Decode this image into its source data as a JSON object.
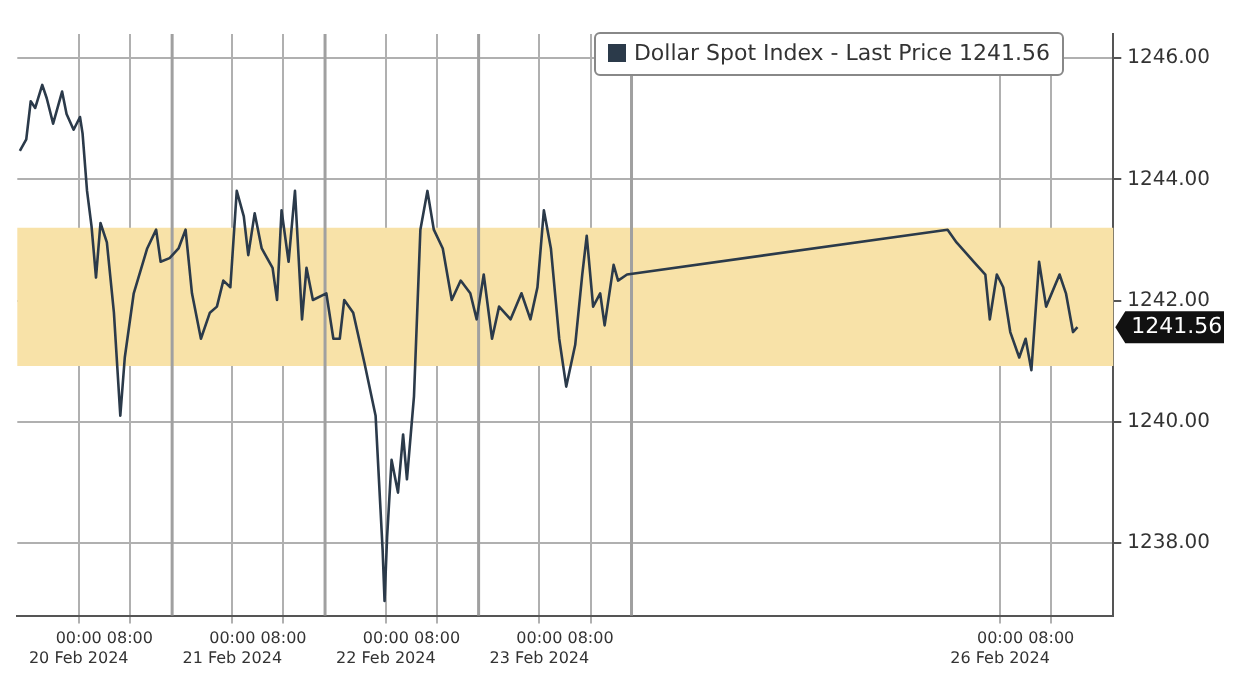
{
  "chart_data": {
    "type": "line",
    "x": [
      "2024-02-19T14:48",
      "2024-02-19T15:48",
      "2024-02-19T16:30",
      "2024-02-19T17:12",
      "2024-02-19T18:18",
      "2024-02-19T19:00",
      "2024-02-19T20:00",
      "2024-02-19T21:24",
      "2024-02-19T22:06",
      "2024-02-19T23:12",
      "2024-02-20T00:12",
      "2024-02-20T00:36",
      "2024-02-20T01:18",
      "2024-02-20T02:00",
      "2024-02-20T02:42",
      "2024-02-20T03:24",
      "2024-02-20T04:24",
      "2024-02-20T05:30",
      "2024-02-20T06:30",
      "2024-02-20T07:12",
      "2024-02-20T08:36",
      "2024-02-20T10:42",
      "2024-02-20T12:06",
      "2024-02-20T12:48",
      "2024-02-20T14:12",
      "2024-02-20T15:36",
      "2024-02-20T16:42",
      "2024-02-20T17:42",
      "2024-02-20T19:06",
      "2024-02-20T20:30",
      "2024-02-20T21:36",
      "2024-02-20T22:36",
      "2024-02-20T23:42",
      "2024-02-21T00:42",
      "2024-02-21T01:48",
      "2024-02-21T02:30",
      "2024-02-21T03:30",
      "2024-02-21T04:36",
      "2024-02-21T06:18",
      "2024-02-21T07:00",
      "2024-02-21T07:42",
      "2024-02-21T08:48",
      "2024-02-21T09:48",
      "2024-02-21T10:54",
      "2024-02-21T11:36",
      "2024-02-21T12:36",
      "2024-02-21T14:42",
      "2024-02-21T15:48",
      "2024-02-21T16:48",
      "2024-02-21T17:30",
      "2024-02-21T18:54",
      "2024-02-21T20:42",
      "2024-02-21T22:24",
      "2024-02-21T23:30",
      "2024-02-21T23:48",
      "2024-02-22T00:12",
      "2024-02-22T00:54",
      "2024-02-22T01:54",
      "2024-02-22T02:42",
      "2024-02-22T03:18",
      "2024-02-22T04:24",
      "2024-02-22T05:24",
      "2024-02-22T06:30",
      "2024-02-22T07:30",
      "2024-02-22T08:54",
      "2024-02-22T10:18",
      "2024-02-22T11:42",
      "2024-02-22T13:12",
      "2024-02-22T14:12",
      "2024-02-22T15:18",
      "2024-02-22T16:36",
      "2024-02-22T17:42",
      "2024-02-22T19:30",
      "2024-02-22T21:12",
      "2024-02-22T22:36",
      "2024-02-22T23:42",
      "2024-02-23T00:42",
      "2024-02-23T01:48",
      "2024-02-23T03:06",
      "2024-02-23T04:12",
      "2024-02-23T05:36",
      "2024-02-23T06:42",
      "2024-02-23T07:24",
      "2024-02-23T08:24",
      "2024-02-23T09:30",
      "2024-02-23T10:12",
      "2024-02-23T11:36",
      "2024-02-23T12:18",
      "2024-02-23T13:42",
      "2024-02-25T15:48",
      "2024-02-25T17:12",
      "2024-02-25T19:54",
      "2024-02-25T21:42",
      "2024-02-25T22:24",
      "2024-02-25T23:30",
      "2024-02-26T00:30",
      "2024-02-26T01:36",
      "2024-02-26T03:00",
      "2024-02-26T04:00",
      "2024-02-26T04:54",
      "2024-02-26T06:06",
      "2024-02-26T07:12",
      "2024-02-26T09:18",
      "2024-02-26T10:18",
      "2024-02-26T11:24",
      "2024-02-26T12:06"
    ],
    "series": [
      {
        "name": "Dollar Spot Index - Last Price 1241.56",
        "color": "#2b3a4a",
        "values": [
          1244.47,
          1244.66,
          1245.29,
          1245.18,
          1245.56,
          1245.34,
          1244.92,
          1245.45,
          1245.08,
          1244.82,
          1245.03,
          1244.76,
          1243.81,
          1243.23,
          1242.38,
          1243.28,
          1242.96,
          1241.8,
          1240.1,
          1241.06,
          1242.12,
          1242.86,
          1243.17,
          1242.64,
          1242.7,
          1242.86,
          1243.17,
          1242.12,
          1241.37,
          1241.8,
          1241.9,
          1242.33,
          1242.22,
          1243.81,
          1243.39,
          1242.75,
          1243.44,
          1242.86,
          1242.54,
          1242.01,
          1243.49,
          1242.64,
          1243.81,
          1241.69,
          1242.54,
          1242.01,
          1242.12,
          1241.37,
          1241.37,
          1242.01,
          1241.8,
          1240.95,
          1240.1,
          1237.88,
          1237.04,
          1238.1,
          1239.37,
          1238.83,
          1239.79,
          1239.05,
          1240.42,
          1243.17,
          1243.81,
          1243.17,
          1242.86,
          1242.01,
          1242.33,
          1242.12,
          1241.69,
          1242.43,
          1241.37,
          1241.9,
          1241.69,
          1242.12,
          1241.69,
          1242.22,
          1243.49,
          1242.86,
          1241.37,
          1240.58,
          1241.27,
          1242.43,
          1243.07,
          1241.9,
          1242.12,
          1241.59,
          1242.59,
          1242.33,
          1242.43,
          1243.17,
          1242.96,
          1242.64,
          1242.43,
          1241.69,
          1242.43,
          1242.22,
          1241.48,
          1241.06,
          1241.37,
          1240.85,
          1242.64,
          1241.9,
          1242.43,
          1242.12,
          1241.48,
          1241.56
        ]
      }
    ],
    "xlim": [
      "2024-02-19T14:24",
      "2024-02-26T17:42"
    ],
    "xticks": [
      {
        "value": "2024-02-20T00:00",
        "label": "00:00\n20 Feb 2024"
      },
      {
        "value": "2024-02-20T08:00",
        "label": "08:00"
      },
      {
        "value": "2024-02-21T00:00",
        "label": "00:00\n21 Feb 2024"
      },
      {
        "value": "2024-02-21T08:00",
        "label": "08:00"
      },
      {
        "value": "2024-02-22T00:00",
        "label": "00:00\n22 Feb 2024"
      },
      {
        "value": "2024-02-22T08:00",
        "label": "08:00"
      },
      {
        "value": "2024-02-23T00:00",
        "label": "00:00\n23 Feb 2024"
      },
      {
        "value": "2024-02-23T08:00",
        "label": "08:00"
      },
      {
        "value": "2024-02-26T00:00",
        "label": "00:00\n26 Feb 2024"
      },
      {
        "value": "2024-02-26T08:00",
        "label": "08:00"
      }
    ],
    "ylim": [
      1236.8,
      1246.4
    ],
    "yticks": [
      {
        "value": 1238,
        "label": "1238.00"
      },
      {
        "value": 1240,
        "label": "1240.00"
      },
      {
        "value": 1242,
        "label": "1242.00"
      },
      {
        "value": 1244,
        "label": "1244.00"
      },
      {
        "value": 1246,
        "label": "1246.00"
      }
    ],
    "bands": [
      {
        "axis": "y",
        "from": 1240.92,
        "to": 1243.2,
        "color": "#f8e2a8"
      }
    ],
    "ref_lines": [
      {
        "axis": "x",
        "value": "2024-02-20T14:36",
        "color": "#a0a0a0",
        "line_style": "solid"
      },
      {
        "axis": "x",
        "value": "2024-02-21T14:30",
        "color": "#a0a0a0",
        "line_style": "solid"
      },
      {
        "axis": "x",
        "value": "2024-02-22T14:30",
        "color": "#a0a0a0",
        "line_style": "solid"
      },
      {
        "axis": "x",
        "value": "2024-02-23T14:24",
        "color": "#a0a0a0",
        "line_style": "solid"
      }
    ],
    "annotations": [
      "1241.56"
    ],
    "grid": true,
    "legend": "top right",
    "marker": "none",
    "line_style": "solid"
  }
}
